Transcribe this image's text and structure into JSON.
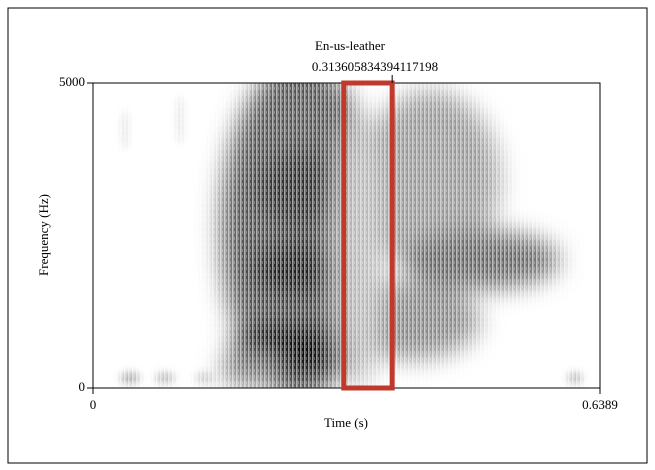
{
  "chart_data": {
    "type": "spectrogram",
    "title": "En-us-leather",
    "subtitle": "0.313605834394117198",
    "x_label": "Time (s)",
    "y_label": "Frequency (Hz)",
    "xlim": [
      0,
      0.6389
    ],
    "xticks": [
      0,
      0.6389
    ],
    "ylim": [
      0,
      5000
    ],
    "yticks": [
      0,
      5000
    ],
    "highlight": {
      "xlim": [
        0.316,
        0.377
      ],
      "color": "#c0392b"
    }
  }
}
